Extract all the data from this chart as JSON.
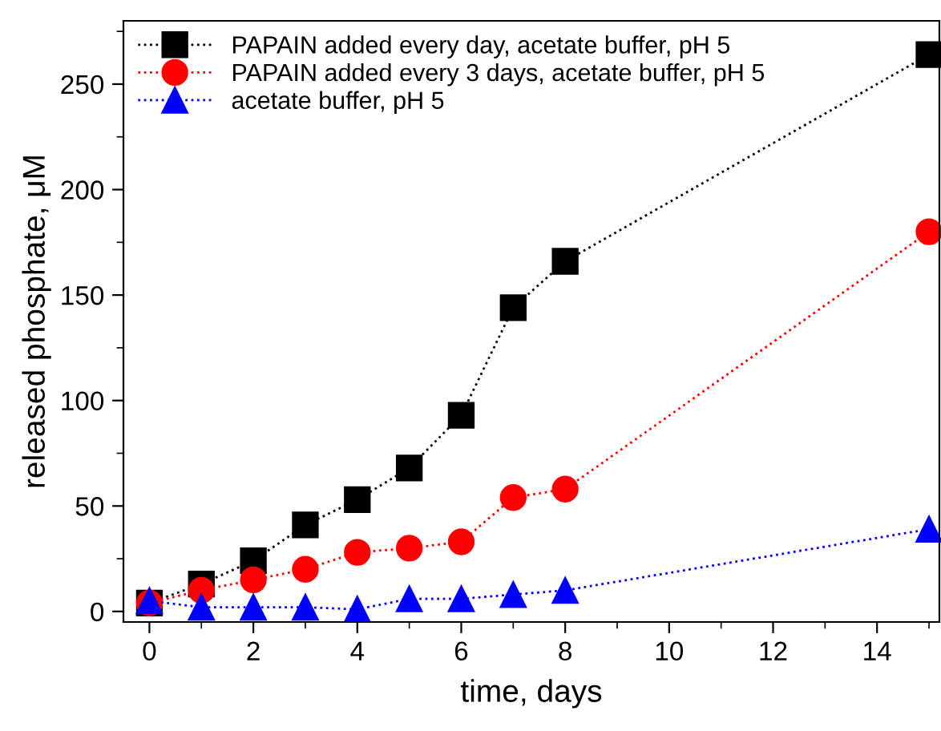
{
  "chart_data": {
    "type": "line",
    "xlabel": "time, days",
    "ylabel": "released phosphate, μM",
    "x": [
      0,
      1,
      2,
      3,
      4,
      5,
      6,
      7,
      8,
      15
    ],
    "series": [
      {
        "name": "PAPAIN added every day, acetate buffer, pH 5",
        "color": "#000000",
        "marker": "square",
        "values": [
          4,
          13,
          24,
          41,
          53,
          68,
          93,
          144,
          166,
          264
        ]
      },
      {
        "name": "PAPAIN added every 3 days, acetate buffer, pH 5",
        "color": "#ff0000",
        "marker": "circle",
        "values": [
          4,
          10,
          15,
          20,
          28,
          30,
          33,
          54,
          58,
          180
        ]
      },
      {
        "name": "acetate buffer, pH 5",
        "color": "#0000ff",
        "marker": "triangle",
        "values": [
          5,
          2,
          2,
          2,
          1,
          6,
          6,
          8,
          10,
          39
        ]
      }
    ],
    "xlim": [
      -0.5,
      15.2
    ],
    "xticks": [
      0,
      2,
      4,
      6,
      8,
      10,
      12,
      14
    ],
    "ylim": [
      -5,
      280
    ],
    "yticks": [
      0,
      50,
      100,
      150,
      200,
      250
    ],
    "line_style": "dotted",
    "legend": "top left",
    "grid": false
  }
}
